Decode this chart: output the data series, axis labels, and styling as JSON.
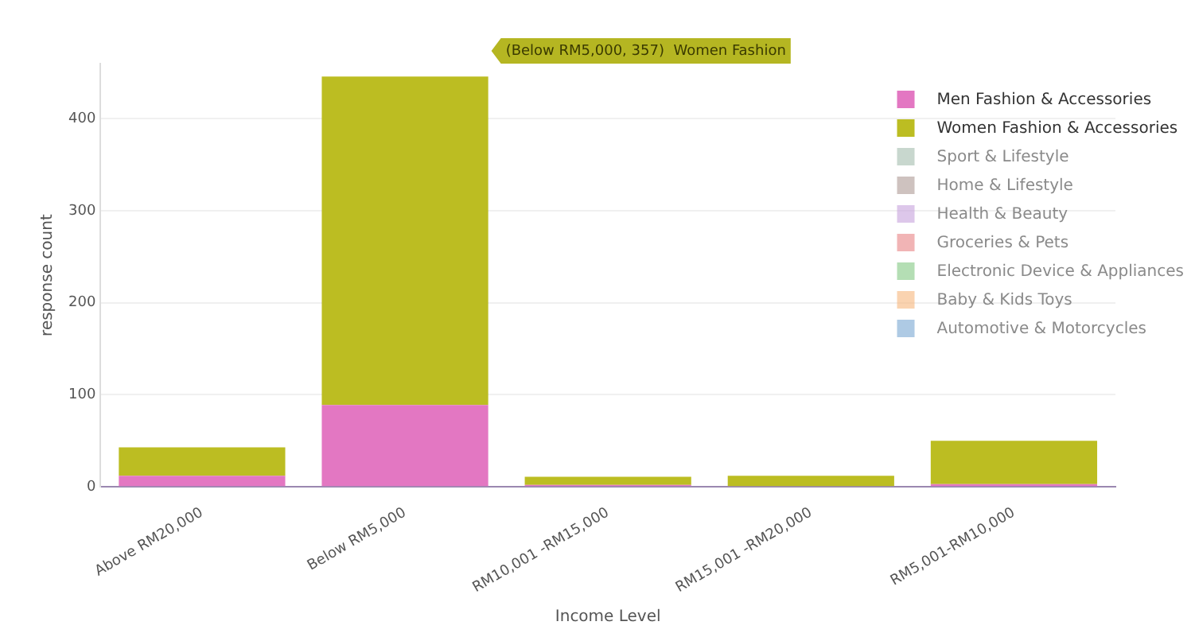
{
  "chart_data": {
    "type": "bar",
    "stacked": true,
    "xlabel": "Income Level",
    "ylabel": "response count",
    "categories": [
      "Above RM20,000",
      "Below RM5,000",
      "RM10,001 -RM15,000",
      "RM15,001 -RM20,000",
      "RM5,001-RM10,000"
    ],
    "series": [
      {
        "name": "Men Fashion & Accessories",
        "color": "#e377c2",
        "values": [
          12,
          89,
          2,
          null,
          3
        ]
      },
      {
        "name": "Women Fashion & Accessories",
        "color": "#bcbd22",
        "values": [
          31,
          357,
          9,
          12,
          47
        ]
      },
      {
        "name": "Sport & Lifestyle",
        "color": "#a3bcae",
        "values": [
          null,
          null,
          null,
          null,
          null
        ]
      },
      {
        "name": "Home & Lifestyle",
        "color": "#ad9a94",
        "values": [
          null,
          null,
          null,
          null,
          null
        ]
      },
      {
        "name": "Health & Beauty",
        "color": "#c6a2dc",
        "values": [
          null,
          null,
          null,
          null,
          null
        ]
      },
      {
        "name": "Groceries & Pets",
        "color": "#e88284",
        "values": [
          null,
          null,
          null,
          null,
          null
        ]
      },
      {
        "name": "Electronic Device & Appliances",
        "color": "#82c882",
        "values": [
          null,
          null,
          null,
          null,
          null
        ]
      },
      {
        "name": "Baby & Kids Toys",
        "color": "#f6b67c",
        "values": [
          null,
          null,
          null,
          null,
          null
        ]
      },
      {
        "name": "Automotive & Motorcycles",
        "color": "#78a6d2",
        "values": [
          null,
          null,
          null,
          null,
          null
        ]
      }
    ],
    "ylim": [
      0,
      460
    ],
    "yticks": [
      0,
      100,
      200,
      300,
      400
    ],
    "grid": "y",
    "legend": "top right",
    "annotations": [
      "(Below RM5,000, 357)  Women Fashion"
    ]
  }
}
